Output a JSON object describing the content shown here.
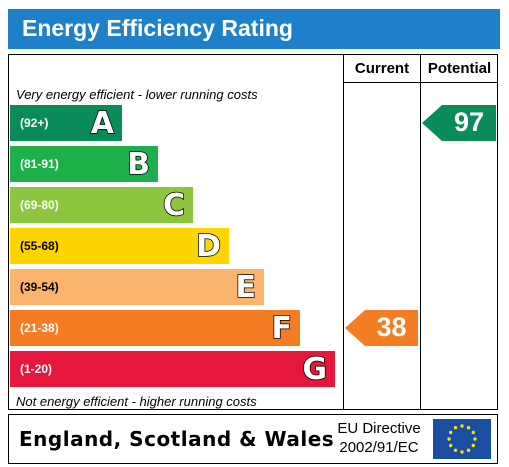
{
  "header": {
    "title": "Energy Efficiency Rating"
  },
  "columns": {
    "current": "Current",
    "potential": "Potential"
  },
  "captions": {
    "top": "Very energy efficient - lower running costs",
    "bottom": "Not energy efficient - higher running costs"
  },
  "colors": {
    "header_bg": "#1d80c8",
    "eu_flag": "#1a4ea0",
    "eu_stars": "#ffdd00"
  },
  "chart_data": {
    "type": "bar",
    "title": "Energy Efficiency Rating",
    "bands": [
      {
        "letter": "A",
        "range": "(92+)",
        "min": 92,
        "max": 100,
        "color": "#0a8c5a"
      },
      {
        "letter": "B",
        "range": "(81-91)",
        "min": 81,
        "max": 91,
        "color": "#1db04a"
      },
      {
        "letter": "C",
        "range": "(69-80)",
        "min": 69,
        "max": 80,
        "color": "#8cc63e"
      },
      {
        "letter": "D",
        "range": "(55-68)",
        "min": 55,
        "max": 68,
        "color": "#ffd500"
      },
      {
        "letter": "E",
        "range": "(39-54)",
        "min": 39,
        "max": 54,
        "color": "#fbb46e"
      },
      {
        "letter": "F",
        "range": "(21-38)",
        "min": 21,
        "max": 38,
        "color": "#f47d24"
      },
      {
        "letter": "G",
        "range": "(1-20)",
        "min": 1,
        "max": 20,
        "color": "#e5173c"
      }
    ],
    "current": {
      "value": 38,
      "band": "F",
      "color": "#f47d24"
    },
    "potential": {
      "value": 97,
      "band": "A",
      "color": "#0a8c5a"
    }
  },
  "footer": {
    "country": "England, Scotland & Wales",
    "directive_line1": "EU Directive",
    "directive_line2": "2002/91/EC"
  }
}
